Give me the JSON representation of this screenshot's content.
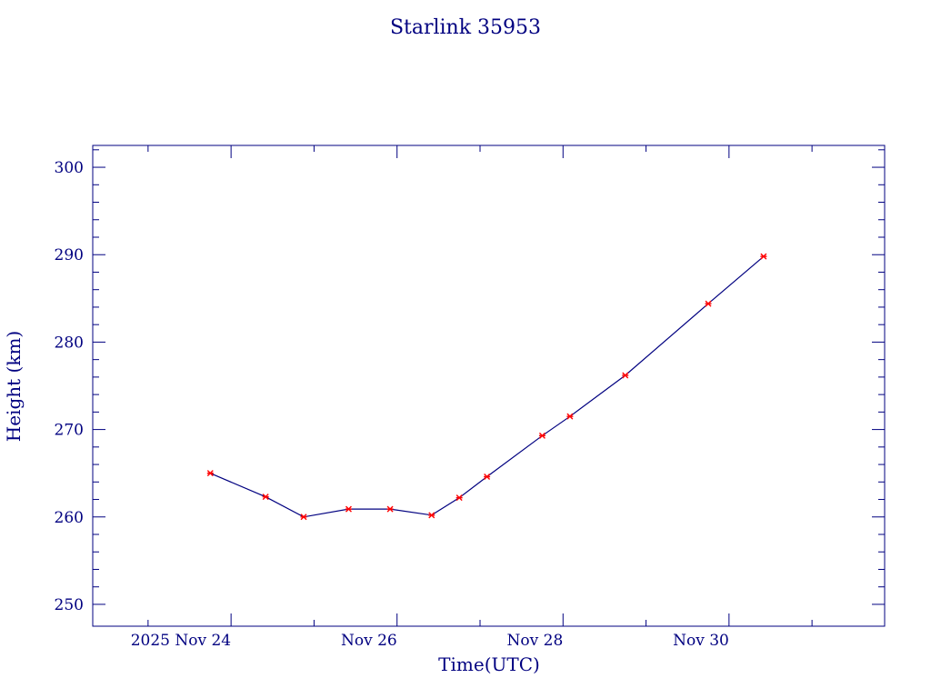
{
  "chart_data": {
    "type": "line",
    "title": "Starlink 35953",
    "xlabel": "Time(UTC)",
    "ylabel": "Height (km)",
    "x_ticks": [
      {
        "date": "2025-11-24",
        "label": "2025 Nov 24"
      },
      {
        "date": "2025-11-26",
        "label": "Nov 26"
      },
      {
        "date": "2025-11-28",
        "label": "Nov 28"
      },
      {
        "date": "2025-11-30",
        "label": "Nov 30"
      }
    ],
    "xlim": [
      "2025-11-22T08:00",
      "2025-12-01T21:00"
    ],
    "y_ticks": [
      250,
      260,
      270,
      280,
      290,
      300
    ],
    "ylim": [
      247.5,
      302.5
    ],
    "grid": false,
    "colors": {
      "axes": "#000080",
      "line": "#000080",
      "marker": "#ff0000"
    },
    "series": [
      {
        "x": [
          "2025-11-23T18:00",
          "2025-11-24T10:00",
          "2025-11-24T21:00",
          "2025-11-25T10:00",
          "2025-11-25T22:00",
          "2025-11-26T10:00",
          "2025-11-26T18:00",
          "2025-11-27T02:00",
          "2025-11-27T18:00",
          "2025-11-28T02:00",
          "2025-11-28T18:00",
          "2025-11-29T18:00",
          "2025-11-30T10:00"
        ],
        "y": [
          265.0,
          262.3,
          260.0,
          260.9,
          260.9,
          260.2,
          262.2,
          264.6,
          269.3,
          271.5,
          276.2,
          284.4,
          289.8
        ]
      }
    ]
  }
}
